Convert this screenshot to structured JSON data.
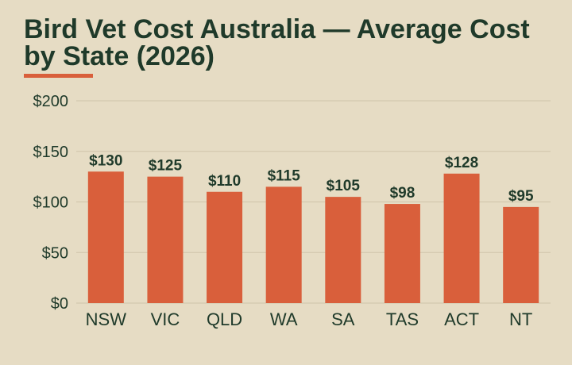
{
  "chart_data": {
    "type": "bar",
    "title": "Bird Vet Cost Australia — Average Cost by State (2026)",
    "categories": [
      "NSW",
      "VIC",
      "QLD",
      "WA",
      "SA",
      "TAS",
      "ACT",
      "NT"
    ],
    "values": [
      130,
      125,
      110,
      115,
      105,
      98,
      128,
      95
    ],
    "data_labels": [
      "$130",
      "$125",
      "$110",
      "$115",
      "$105",
      "$98",
      "$128",
      "$95"
    ],
    "yticks": [
      0,
      50,
      100,
      150,
      200
    ],
    "ytick_labels": [
      "$0",
      "$50",
      "$100",
      "$150",
      "$200"
    ],
    "ylim": [
      0,
      200
    ],
    "xlabel": "",
    "ylabel": "",
    "grid": true,
    "legend": "none",
    "colors": {
      "bar": "#d95f3b",
      "text": "#1f3a2a",
      "background": "#e6dcc4",
      "grid": "#cfc4aa",
      "accent": "#d95f3b"
    }
  }
}
